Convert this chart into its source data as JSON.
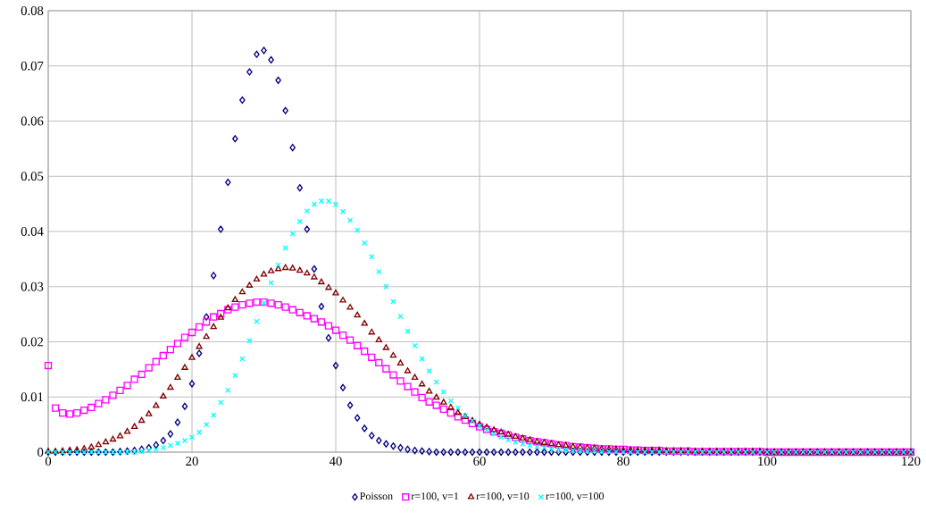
{
  "chart_data": {
    "type": "scatter",
    "grid": true,
    "legend": "bottom",
    "x": [
      0,
      1,
      2,
      3,
      4,
      5,
      6,
      7,
      8,
      9,
      10,
      11,
      12,
      13,
      14,
      15,
      16,
      17,
      18,
      19,
      20,
      21,
      22,
      23,
      24,
      25,
      26,
      27,
      28,
      29,
      30,
      31,
      32,
      33,
      34,
      35,
      36,
      37,
      38,
      39,
      40,
      41,
      42,
      43,
      44,
      45,
      46,
      47,
      48,
      49,
      50,
      51,
      52,
      53,
      54,
      55,
      56,
      57,
      58,
      59,
      60,
      61,
      62,
      63,
      64,
      65,
      66,
      67,
      68,
      69,
      70,
      71,
      72,
      73,
      74,
      75,
      76,
      77,
      78,
      79,
      80,
      81,
      82,
      83,
      84,
      85,
      86,
      87,
      88,
      89,
      90,
      91,
      92,
      93,
      94,
      95,
      96,
      97,
      98,
      99,
      100,
      101,
      102,
      103,
      104,
      105,
      106,
      107,
      108,
      109,
      110,
      111,
      112,
      113,
      114,
      115,
      116,
      117,
      118,
      119,
      120
    ],
    "xlim": [
      0,
      120
    ],
    "xticks": [
      0,
      20,
      40,
      60,
      80,
      100,
      120
    ],
    "ylim": [
      0,
      0.08
    ],
    "yticks": [
      0,
      0.01,
      0.02,
      0.03,
      0.04,
      0.05,
      0.06,
      0.07,
      0.08
    ],
    "series": [
      {
        "name": "Poisson",
        "color": "#000080",
        "marker": "diamond",
        "values": [
          0,
          0,
          0,
          0,
          0,
          0,
          0,
          0,
          0,
          0,
          0.0001,
          0.0002,
          0.0003,
          0.0005,
          0.0008,
          0.0013,
          0.0021,
          0.0033,
          0.0054,
          0.0083,
          0.0124,
          0.0179,
          0.0245,
          0.032,
          0.0404,
          0.0489,
          0.0568,
          0.0638,
          0.0689,
          0.0721,
          0.0728,
          0.0711,
          0.0674,
          0.0619,
          0.0552,
          0.0479,
          0.0404,
          0.0332,
          0.0264,
          0.0207,
          0.0157,
          0.0117,
          0.0085,
          0.0062,
          0.0043,
          0.003,
          0.0021,
          0.0015,
          0.0011,
          0.0008,
          0.0005,
          0.0003,
          0.0002,
          0.0001,
          0,
          0,
          0,
          0,
          0,
          0,
          0,
          0,
          0,
          0,
          0,
          0,
          0,
          0,
          0,
          0,
          0,
          0,
          0,
          0,
          0,
          0,
          0,
          0,
          0,
          0,
          0,
          0,
          0,
          0,
          0,
          0,
          0,
          0,
          0,
          0,
          0,
          0,
          0,
          0,
          0,
          0,
          0,
          0,
          0,
          0,
          0,
          0,
          0,
          0,
          0,
          0,
          0,
          0,
          0,
          0,
          0,
          0,
          0,
          0,
          0,
          0,
          0,
          0,
          0,
          0,
          0
        ]
      },
      {
        "name": "r=100, v=1",
        "color": "#ff00ff",
        "marker": "square",
        "values": [
          0.0157,
          0.008,
          0.0071,
          0.0069,
          0.0071,
          0.0076,
          0.0081,
          0.0088,
          0.0095,
          0.0103,
          0.0112,
          0.0121,
          0.0132,
          0.0141,
          0.0153,
          0.0164,
          0.0175,
          0.0186,
          0.0197,
          0.0208,
          0.0217,
          0.0227,
          0.0236,
          0.0245,
          0.0251,
          0.0258,
          0.0263,
          0.0267,
          0.027,
          0.0272,
          0.0272,
          0.027,
          0.0267,
          0.0263,
          0.0258,
          0.0253,
          0.0247,
          0.0242,
          0.0236,
          0.0229,
          0.0221,
          0.0212,
          0.0203,
          0.0193,
          0.0183,
          0.0172,
          0.0162,
          0.0151,
          0.014,
          0.0129,
          0.0119,
          0.0109,
          0.0099,
          0.0091,
          0.0085,
          0.0078,
          0.0071,
          0.0064,
          0.0058,
          0.0052,
          0.0046,
          0.0041,
          0.0037,
          0.0034,
          0.0031,
          0.0027,
          0.0024,
          0.0021,
          0.0019,
          0.0017,
          0.0015,
          0.0013,
          0.0012,
          0.001,
          0.0009,
          0.0008,
          0.0007,
          0.0006,
          0.0006,
          0.0005,
          0.0005,
          0.0004,
          0.0004,
          0.0003,
          0.0003,
          0.0003,
          0.0002,
          0.0002,
          0.0002,
          0.0002,
          0.0001,
          0.0001,
          0.0001,
          0.0001,
          0.0001,
          0.0001,
          0.0001,
          0.0001,
          0.0001,
          0.0001,
          0,
          0,
          0,
          0,
          0,
          0,
          0,
          0,
          0,
          0,
          0,
          0,
          0,
          0,
          0,
          0,
          0,
          0,
          0,
          0,
          0
        ]
      },
      {
        "name": "r=100, v=10",
        "color": "#800000",
        "marker": "triangle",
        "values": [
          0.0001,
          0.0001,
          0.0002,
          0.0003,
          0.0004,
          0.0006,
          0.0009,
          0.0013,
          0.0018,
          0.0023,
          0.0029,
          0.0037,
          0.0046,
          0.0057,
          0.0069,
          0.0084,
          0.0101,
          0.0117,
          0.0135,
          0.0153,
          0.0171,
          0.0191,
          0.0209,
          0.0227,
          0.0244,
          0.0261,
          0.0276,
          0.029,
          0.0302,
          0.0313,
          0.0322,
          0.0328,
          0.0332,
          0.0334,
          0.0333,
          0.0329,
          0.0324,
          0.0317,
          0.0308,
          0.0298,
          0.0288,
          0.0275,
          0.0262,
          0.0248,
          0.0233,
          0.0217,
          0.0203,
          0.0189,
          0.0175,
          0.0161,
          0.0147,
          0.0135,
          0.0123,
          0.011,
          0.0099,
          0.009,
          0.0081,
          0.0071,
          0.0064,
          0.0057,
          0.005,
          0.0045,
          0.004,
          0.0036,
          0.0032,
          0.0028,
          0.0025,
          0.0022,
          0.0019,
          0.0017,
          0.0015,
          0.0013,
          0.0012,
          0.001,
          0.0009,
          0.0008,
          0.0007,
          0.0006,
          0.0005,
          0.0005,
          0.0004,
          0.0004,
          0.0003,
          0.0003,
          0.0003,
          0.0003,
          0.0002,
          0.0002,
          0.0002,
          0.0002,
          0.0001,
          0.0001,
          0.0001,
          0.0001,
          0.0001,
          0.0001,
          0.0001,
          0.0001,
          0.0001,
          0.0001,
          0,
          0,
          0,
          0,
          0,
          0,
          0,
          0,
          0,
          0,
          0,
          0,
          0,
          0,
          0,
          0,
          0,
          0,
          0,
          0,
          0
        ]
      },
      {
        "name": "r=100, v=100",
        "color": "#00ffff",
        "marker": "cross",
        "values": [
          0,
          0,
          0,
          0,
          0,
          0,
          0,
          0,
          0,
          0,
          0,
          0,
          0,
          0.0001,
          0.0003,
          0.0005,
          0.0008,
          0.0012,
          0.0016,
          0.0021,
          0.0027,
          0.0036,
          0.005,
          0.0067,
          0.009,
          0.0112,
          0.0139,
          0.0169,
          0.0202,
          0.0237,
          0.027,
          0.0307,
          0.0339,
          0.037,
          0.0396,
          0.0418,
          0.0437,
          0.0449,
          0.0455,
          0.0455,
          0.0449,
          0.0436,
          0.042,
          0.0402,
          0.0379,
          0.0354,
          0.0327,
          0.03,
          0.0273,
          0.0246,
          0.0219,
          0.0193,
          0.0169,
          0.0147,
          0.0127,
          0.0109,
          0.0093,
          0.008,
          0.0066,
          0.0057,
          0.0047,
          0.004,
          0.0033,
          0.0027,
          0.0022,
          0.0018,
          0.0015,
          0.0012,
          0.001,
          0.0008,
          0.0006,
          0.0005,
          0.0004,
          0.0003,
          0.0003,
          0.0002,
          0.0002,
          0.0001,
          0.0001,
          0.0001,
          0,
          0,
          0,
          0,
          0,
          0,
          0,
          0,
          0,
          0,
          0,
          0,
          0,
          0,
          0,
          0,
          0,
          0,
          0,
          0,
          0,
          0,
          0,
          0,
          0,
          0,
          0,
          0,
          0,
          0,
          0,
          0,
          0,
          0,
          0,
          0,
          0,
          0,
          0,
          0,
          0
        ]
      }
    ]
  }
}
